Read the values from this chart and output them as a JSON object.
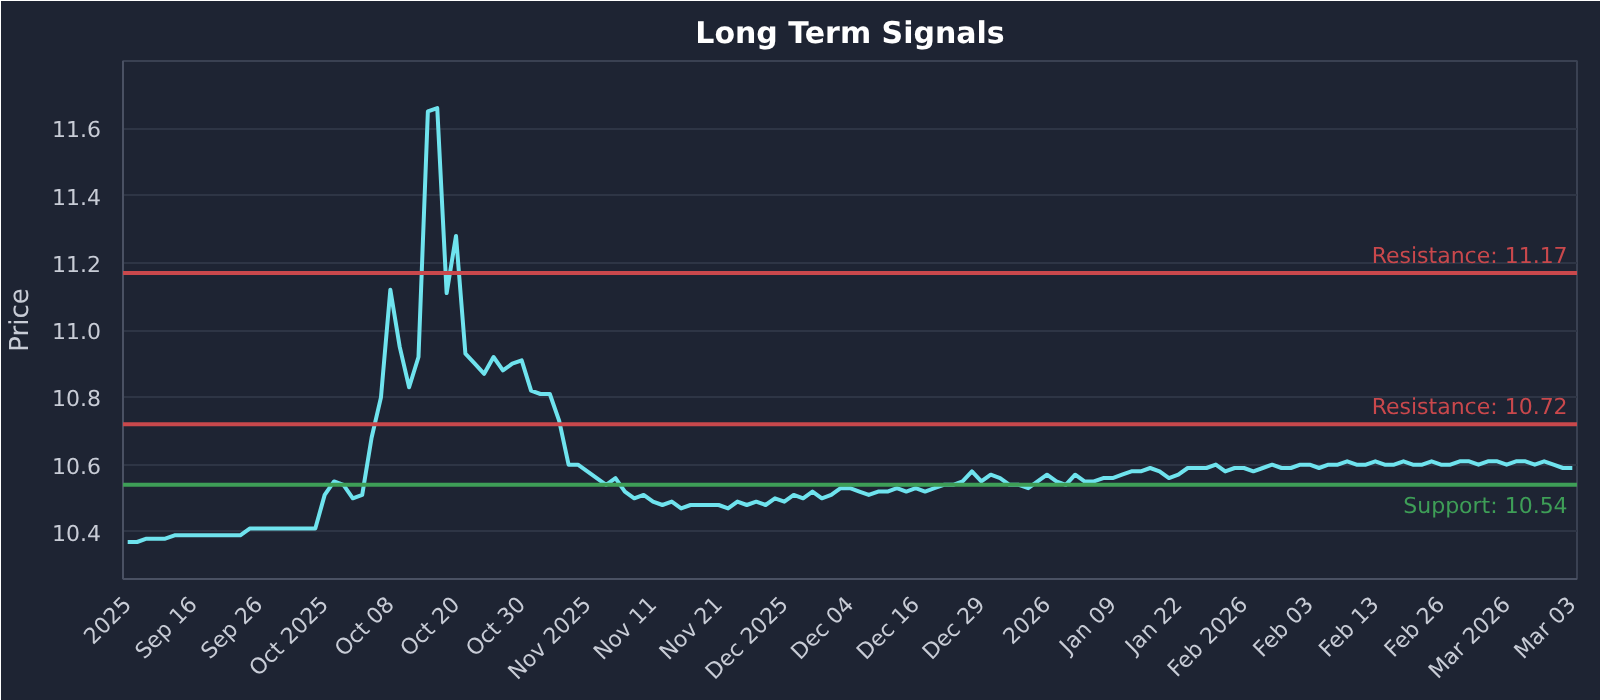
{
  "chart_data": {
    "type": "line",
    "title": "Long Term Signals",
    "ylabel": "Price",
    "categories": [
      "2025",
      null,
      null,
      null,
      null,
      null,
      null,
      "Sep 16",
      null,
      null,
      null,
      null,
      null,
      null,
      "Sep 26",
      null,
      null,
      null,
      null,
      null,
      null,
      "Oct 2025",
      null,
      null,
      null,
      null,
      null,
      null,
      "Oct 08",
      null,
      null,
      null,
      null,
      null,
      null,
      "Oct 20",
      null,
      null,
      null,
      null,
      null,
      null,
      "Oct 30",
      null,
      null,
      null,
      null,
      null,
      null,
      "Nov 2025",
      null,
      null,
      null,
      null,
      null,
      null,
      "Nov 11",
      null,
      null,
      null,
      null,
      null,
      null,
      "Nov 21",
      null,
      null,
      null,
      null,
      null,
      null,
      "Dec 2025",
      null,
      null,
      null,
      null,
      null,
      null,
      "Dec 04",
      null,
      null,
      null,
      null,
      null,
      null,
      "Dec 16",
      null,
      null,
      null,
      null,
      null,
      null,
      "Dec 29",
      null,
      null,
      null,
      null,
      null,
      null,
      "2026",
      null,
      null,
      null,
      null,
      null,
      null,
      "Jan 09",
      null,
      null,
      null,
      null,
      null,
      null,
      "Jan 22",
      null,
      null,
      null,
      null,
      null,
      null,
      "Feb 2026",
      null,
      null,
      null,
      null,
      null,
      null,
      "Feb 03",
      null,
      null,
      null,
      null,
      null,
      null,
      "Feb 13",
      null,
      null,
      null,
      null,
      null,
      null,
      "Feb 26",
      null,
      null,
      null,
      null,
      null,
      null,
      "Mar 2026",
      null,
      null,
      null,
      null,
      null,
      null,
      "Mar 03"
    ],
    "series": [
      {
        "color": "#6fe3ee",
        "values": [
          10.37,
          10.37,
          10.38,
          10.38,
          10.38,
          10.39,
          10.39,
          10.39,
          10.39,
          10.39,
          10.39,
          10.39,
          10.39,
          10.41,
          10.41,
          10.41,
          10.41,
          10.41,
          10.41,
          10.41,
          10.41,
          10.51,
          10.55,
          10.54,
          10.5,
          10.51,
          10.68,
          10.8,
          11.12,
          10.95,
          10.83,
          10.92,
          11.65,
          11.66,
          11.11,
          11.28,
          10.93,
          10.9,
          10.87,
          10.92,
          10.88,
          10.9,
          10.91,
          10.82,
          10.81,
          10.81,
          10.73,
          10.6,
          10.6,
          10.58,
          10.56,
          10.54,
          10.56,
          10.52,
          10.5,
          10.51,
          10.49,
          10.48,
          10.49,
          10.47,
          10.48,
          10.48,
          10.48,
          10.48,
          10.47,
          10.49,
          10.48,
          10.49,
          10.48,
          10.5,
          10.49,
          10.51,
          10.5,
          10.52,
          10.5,
          10.51,
          10.53,
          10.53,
          10.52,
          10.51,
          10.52,
          10.52,
          10.53,
          10.52,
          10.53,
          10.52,
          10.53,
          10.54,
          10.54,
          10.55,
          10.58,
          10.55,
          10.57,
          10.56,
          10.54,
          10.54,
          10.53,
          10.55,
          10.57,
          10.55,
          10.54,
          10.57,
          10.55,
          10.55,
          10.56,
          10.56,
          10.57,
          10.58,
          10.58,
          10.59,
          10.58,
          10.56,
          10.57,
          10.59,
          10.59,
          10.59,
          10.6,
          10.58,
          10.59,
          10.59,
          10.58,
          10.59,
          10.6,
          10.59,
          10.59,
          10.6,
          10.6,
          10.59,
          10.6,
          10.6,
          10.61,
          10.6,
          10.6,
          10.61,
          10.6,
          10.6,
          10.61,
          10.6,
          10.6,
          10.61,
          10.6,
          10.6,
          10.61,
          10.61,
          10.6,
          10.61,
          10.61,
          10.6,
          10.61,
          10.61,
          10.6,
          10.61,
          10.6,
          10.59,
          10.59
        ]
      }
    ],
    "ylim": [
      10.26,
      11.8
    ],
    "yticks": [
      10.4,
      10.6,
      10.8,
      {
        "value": 11,
        "label": "11.0"
      },
      11.2,
      11.4,
      11.6
    ],
    "grid": "y",
    "line_style": "solid",
    "ref_lines": [
      {
        "axis": "y",
        "value": 11.17,
        "label": "Resistance: 11.17",
        "color": "#c9484c"
      },
      {
        "axis": "y",
        "value": 10.72,
        "label": "Resistance: 10.72",
        "color": "#c9484c"
      },
      {
        "axis": "y",
        "value": 10.54,
        "label": "Support: 10.54",
        "color": "#3e9e57"
      }
    ]
  }
}
